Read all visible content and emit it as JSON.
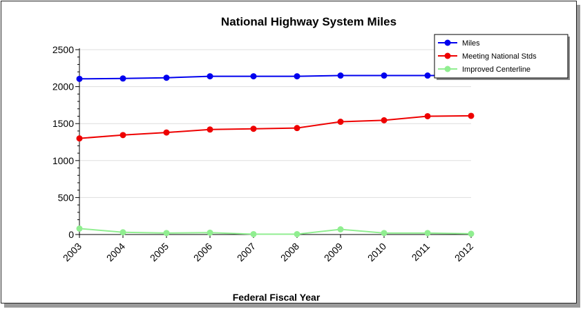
{
  "chart_data": {
    "type": "line",
    "title": "National Highway System Miles",
    "xlabel": "Federal Fiscal Year",
    "ylabel": "",
    "categories": [
      "2003",
      "2004",
      "2005",
      "2006",
      "2007",
      "2008",
      "2009",
      "2010",
      "2011",
      "2012"
    ],
    "ylim": [
      0,
      2500
    ],
    "yticks": [
      0,
      500,
      1000,
      1500,
      2000,
      2500
    ],
    "grid": true,
    "legend_position": "top-right",
    "series": [
      {
        "name": "Miles",
        "color": "#0000ee",
        "values": [
          2105,
          2110,
          2120,
          2140,
          2140,
          2140,
          2150,
          2150,
          2150,
          2150
        ]
      },
      {
        "name": "Meeting National Stds",
        "color": "#ee0000",
        "values": [
          1300,
          1345,
          1380,
          1420,
          1430,
          1440,
          1525,
          1545,
          1600,
          1605
        ]
      },
      {
        "name": "Improved Centerline",
        "color": "#90ee90",
        "values": [
          80,
          30,
          20,
          25,
          5,
          5,
          70,
          20,
          20,
          10
        ]
      }
    ]
  }
}
